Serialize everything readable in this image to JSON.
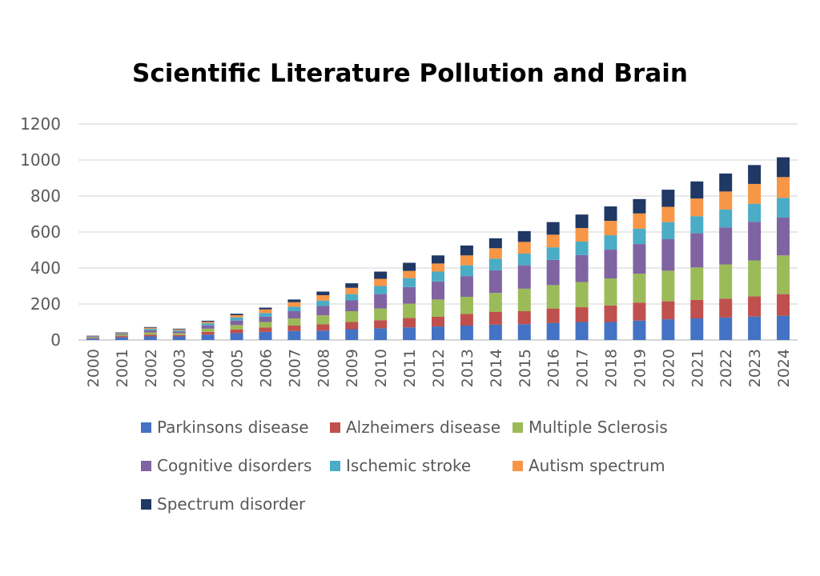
{
  "chart_data": {
    "type": "bar",
    "stacked": true,
    "title": "Scientific Literature Pollution and Brain",
    "xlabel": "",
    "ylabel": "",
    "ylim": [
      0,
      1200
    ],
    "yticks": [
      "0",
      "200",
      "400",
      "600",
      "800",
      "1000",
      "1200"
    ],
    "grid": true,
    "legend_position": "bottom",
    "categories": [
      "2000",
      "2001",
      "2002",
      "2003",
      "2004",
      "2005",
      "2006",
      "2007",
      "2008",
      "2009",
      "2010",
      "2011",
      "2012",
      "2013",
      "2014",
      "2015",
      "2016",
      "2017",
      "2018",
      "2019",
      "2020",
      "2021",
      "2022",
      "2023",
      "2024"
    ],
    "series": [
      {
        "name": "Parkinsons disease",
        "color": "#4472C4",
        "values": [
          8,
          15,
          20,
          20,
          30,
          38,
          45,
          50,
          52,
          60,
          65,
          70,
          75,
          80,
          85,
          88,
          95,
          100,
          100,
          108,
          115,
          120,
          125,
          130,
          135
        ]
      },
      {
        "name": "Alzheimers disease",
        "color": "#C0504D",
        "values": [
          4,
          7,
          10,
          8,
          15,
          20,
          25,
          30,
          35,
          40,
          45,
          52,
          55,
          65,
          72,
          72,
          80,
          82,
          92,
          100,
          100,
          103,
          105,
          112,
          120
        ]
      },
      {
        "name": "Multiple Sclerosis",
        "color": "#9BBB59",
        "values": [
          4,
          7,
          12,
          10,
          18,
          25,
          30,
          40,
          50,
          60,
          65,
          80,
          95,
          95,
          105,
          125,
          130,
          140,
          150,
          160,
          170,
          180,
          190,
          200,
          215
        ]
      },
      {
        "name": "Cognitive disorders",
        "color": "#8064A2",
        "values": [
          4,
          6,
          12,
          10,
          18,
          25,
          30,
          40,
          52,
          60,
          80,
          92,
          100,
          115,
          125,
          130,
          140,
          150,
          160,
          165,
          175,
          190,
          205,
          215,
          210
        ]
      },
      {
        "name": "Ischemic stroke",
        "color": "#4BACC6",
        "values": [
          2,
          3,
          8,
          6,
          12,
          18,
          20,
          25,
          30,
          35,
          45,
          50,
          55,
          60,
          65,
          65,
          70,
          75,
          80,
          85,
          95,
          95,
          100,
          100,
          110
        ]
      },
      {
        "name": "Autism spectrum",
        "color": "#F79646",
        "values": [
          2,
          3,
          6,
          5,
          8,
          12,
          20,
          25,
          30,
          35,
          40,
          40,
          45,
          55,
          58,
          65,
          70,
          75,
          80,
          85,
          85,
          98,
          100,
          110,
          115
        ]
      },
      {
        "name": "Spectrum disorder",
        "color": "#1F3864",
        "values": [
          1,
          2,
          4,
          4,
          6,
          8,
          10,
          15,
          20,
          25,
          40,
          45,
          45,
          55,
          55,
          60,
          70,
          75,
          80,
          80,
          95,
          95,
          100,
          105,
          110
        ]
      }
    ]
  }
}
